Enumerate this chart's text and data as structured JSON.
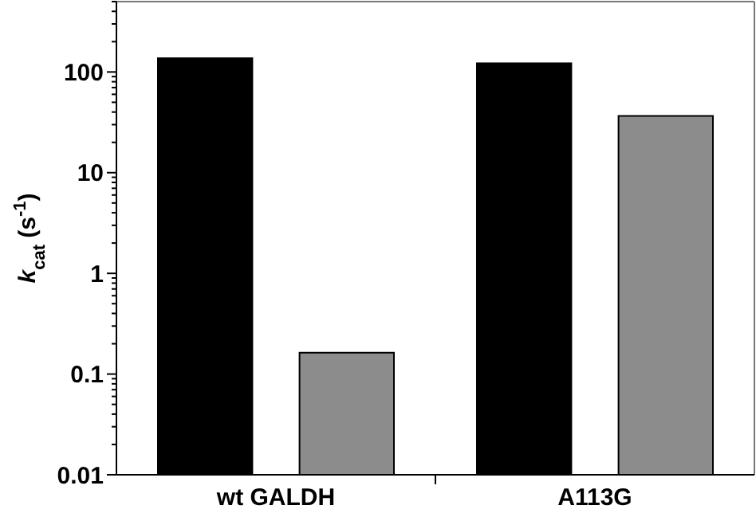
{
  "chart_data": {
    "type": "bar",
    "ylabel": "k$_{cat}$ (s$^{-1}$)",
    "categories": [
      "wt GALDH",
      "A113G"
    ],
    "log": true,
    "ylim": [
      0.01,
      500
    ],
    "yticks": [
      0.01,
      0.1,
      1,
      10,
      100
    ],
    "series": [
      {
        "color": "#000000",
        "values": [
          137,
          122
        ]
      },
      {
        "color": "#8c8c8c",
        "values": [
          0.163,
          36.6
        ]
      }
    ]
  }
}
